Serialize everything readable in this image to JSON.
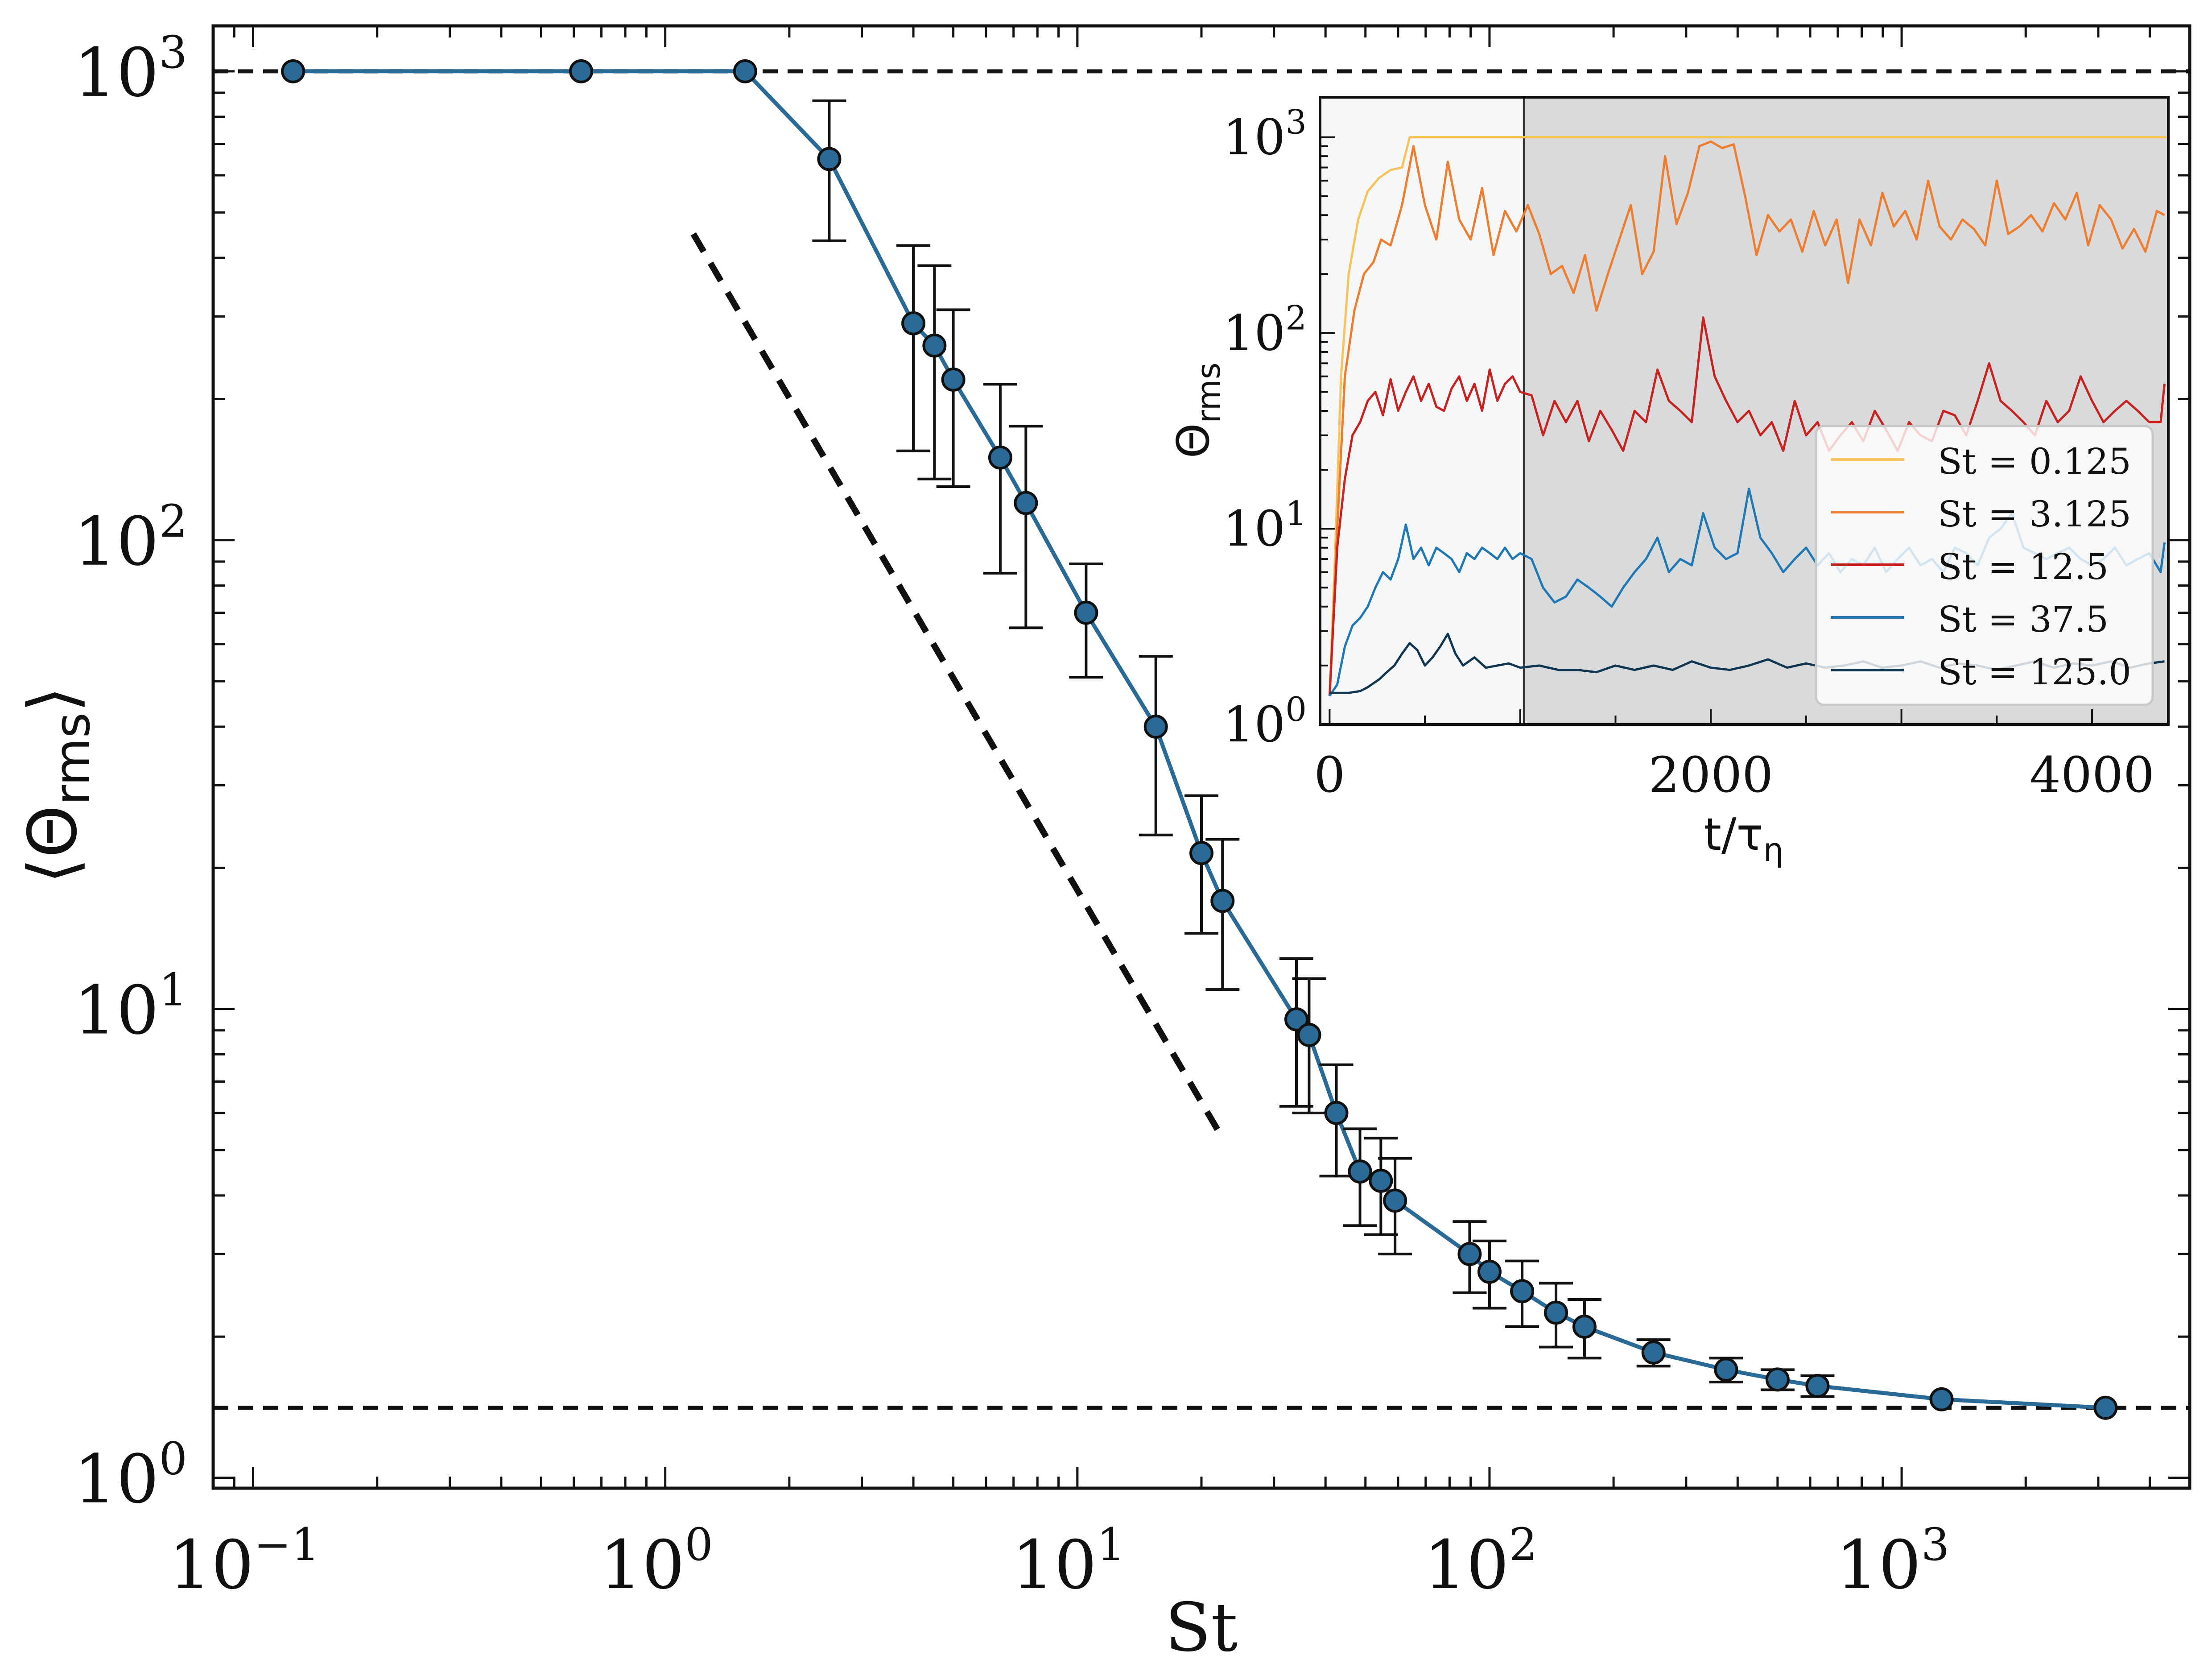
{
  "chart_data": [
    {
      "type": "line",
      "title": "",
      "xlabel": "St",
      "ylabel_main": "Θ",
      "ylabel_sub": "rms",
      "xscale": "log",
      "yscale": "log",
      "xlim": [
        0.08,
        5000
      ],
      "ylim": [
        0.95,
        1250
      ],
      "grid": false,
      "color": "#2a6a96",
      "marker_fill": "#2b6a96",
      "x_ticks": [
        {
          "base": "10",
          "exp": "−1",
          "value": 0.1
        },
        {
          "base": "10",
          "exp": "0",
          "value": 1
        },
        {
          "base": "10",
          "exp": "1",
          "value": 10
        },
        {
          "base": "10",
          "exp": "2",
          "value": 100
        },
        {
          "base": "10",
          "exp": "3",
          "value": 1000
        }
      ],
      "y_ticks": [
        {
          "base": "10",
          "exp": "0",
          "value": 1
        },
        {
          "base": "10",
          "exp": "1",
          "value": 10
        },
        {
          "base": "10",
          "exp": "2",
          "value": 100
        },
        {
          "base": "10",
          "exp": "3",
          "value": 1000
        }
      ],
      "series": [
        {
          "name": "mean Θrms",
          "x": [
            0.125,
            0.625,
            1.5625,
            2.5,
            4.0,
            4.5,
            5.0,
            6.5,
            7.5,
            10.5,
            15.5,
            20.0,
            22.5,
            34.0,
            36.5,
            42.5,
            48.5,
            54.5,
            59.0,
            89.5,
            100.0,
            120.0,
            145.0,
            170.0,
            250.0,
            375.0,
            500.0,
            625.0,
            1250.0,
            3125.0
          ],
          "y": [
            1000,
            1000,
            1000,
            650,
            290,
            260,
            220,
            150,
            120,
            70,
            40,
            21.5,
            17,
            9.5,
            8.8,
            6,
            4.5,
            4.3,
            3.9,
            3.0,
            2.75,
            2.5,
            2.25,
            2.1,
            1.85,
            1.7,
            1.62,
            1.57,
            1.47,
            1.41
          ],
          "err_low": [
            0,
            0,
            0,
            215,
            135,
            125,
            90,
            65,
            55,
            19,
            16.5,
            7,
            6,
            3.3,
            2.8,
            1.6,
            1.05,
            1.0,
            0.9,
            0.52,
            0.45,
            0.4,
            0.35,
            0.3,
            0.12,
            0.1,
            0.08,
            0.08,
            0,
            0
          ],
          "err_high": [
            0,
            0,
            0,
            215,
            135,
            125,
            90,
            65,
            55,
            19,
            16.5,
            7,
            6,
            3.3,
            2.8,
            1.6,
            1.05,
            1.0,
            0.9,
            0.52,
            0.45,
            0.4,
            0.35,
            0.3,
            0.12,
            0.1,
            0.08,
            0.08,
            0,
            0
          ]
        }
      ],
      "reference_lines": [
        {
          "kind": "horizontal",
          "y": 1000,
          "style": "dashed"
        },
        {
          "kind": "horizontal",
          "y": 1.41,
          "style": "dashed"
        },
        {
          "kind": "guide",
          "x": [
            1.17,
            22.5
          ],
          "y": [
            450,
            5.3
          ],
          "style": "dashed"
        }
      ]
    },
    {
      "type": "line",
      "title": "",
      "xlabel": "t/τ",
      "xlabel_sub": "η",
      "ylabel_main": "Θ",
      "ylabel_sub": "rms",
      "xscale": "linear",
      "yscale": "log",
      "xlim": [
        -50,
        4400
      ],
      "ylim": [
        1,
        1600
      ],
      "transient_end": 1020,
      "transient_shade": "#f5f7f9",
      "steady_shade": "#d9dadc",
      "x_ticks": [
        {
          "label": "0",
          "value": 0
        },
        {
          "label": "2000",
          "value": 2000
        },
        {
          "label": "4000",
          "value": 4000
        }
      ],
      "y_ticks": [
        {
          "base": "10",
          "exp": "0",
          "value": 1
        },
        {
          "base": "10",
          "exp": "1",
          "value": 10
        },
        {
          "base": "10",
          "exp": "2",
          "value": 100
        },
        {
          "base": "10",
          "exp": "3",
          "value": 1000
        }
      ],
      "legend_position": "lower-right",
      "series": [
        {
          "name": "St = 0.125",
          "color": "#f7c35a",
          "t": [
            0,
            30,
            60,
            100,
            150,
            200,
            260,
            320,
            380,
            420,
            4400
          ],
          "y": [
            1.4,
            8,
            60,
            200,
            380,
            530,
            620,
            680,
            700,
            1000,
            1000
          ]
        },
        {
          "name": "St = 3.125",
          "color": "#f07c2e",
          "t": [
            0,
            40,
            80,
            130,
            180,
            230,
            270,
            320,
            380,
            440,
            500,
            560,
            620,
            680,
            740,
            800,
            860,
            920,
            980,
            1040,
            1100,
            1160,
            1220,
            1280,
            1340,
            1400,
            1460,
            1520,
            1580,
            1640,
            1700,
            1760,
            1820,
            1880,
            1940,
            2000,
            2060,
            2120,
            2180,
            2240,
            2300,
            2360,
            2420,
            2480,
            2540,
            2600,
            2660,
            2720,
            2780,
            2840,
            2900,
            2960,
            3020,
            3080,
            3140,
            3200,
            3260,
            3320,
            3380,
            3440,
            3500,
            3560,
            3620,
            3680,
            3740,
            3800,
            3860,
            3920,
            3980,
            4040,
            4100,
            4160,
            4220,
            4280,
            4340,
            4380
          ],
          "y": [
            1.4,
            10,
            60,
            130,
            200,
            230,
            300,
            280,
            450,
            900,
            450,
            300,
            750,
            380,
            300,
            550,
            250,
            420,
            330,
            450,
            320,
            200,
            220,
            160,
            250,
            130,
            200,
            300,
            450,
            200,
            260,
            800,
            360,
            520,
            900,
            950,
            880,
            920,
            500,
            250,
            400,
            330,
            380,
            260,
            420,
            280,
            380,
            180,
            380,
            280,
            520,
            350,
            420,
            300,
            600,
            350,
            300,
            380,
            340,
            280,
            600,
            320,
            350,
            400,
            330,
            460,
            380,
            520,
            280,
            450,
            380,
            270,
            340,
            260,
            420,
            400
          ]
        },
        {
          "name": "St = 12.5",
          "color": "#c8211f",
          "t": [
            0,
            40,
            80,
            120,
            160,
            200,
            240,
            280,
            320,
            360,
            400,
            440,
            480,
            520,
            560,
            600,
            640,
            680,
            720,
            760,
            800,
            840,
            880,
            920,
            960,
            1000,
            1060,
            1120,
            1180,
            1240,
            1300,
            1360,
            1420,
            1480,
            1540,
            1600,
            1660,
            1720,
            1780,
            1840,
            1900,
            1960,
            2020,
            2080,
            2140,
            2200,
            2260,
            2320,
            2380,
            2440,
            2500,
            2560,
            2620,
            2680,
            2740,
            2800,
            2860,
            2920,
            2980,
            3040,
            3100,
            3160,
            3220,
            3280,
            3340,
            3400,
            3460,
            3520,
            3580,
            3640,
            3700,
            3760,
            3820,
            3880,
            3940,
            4000,
            4060,
            4120,
            4180,
            4240,
            4300,
            4360,
            4380
          ],
          "y": [
            1.4,
            8,
            18,
            30,
            35,
            45,
            50,
            38,
            58,
            40,
            50,
            60,
            45,
            55,
            42,
            40,
            52,
            60,
            45,
            55,
            40,
            65,
            45,
            55,
            60,
            50,
            48,
            30,
            45,
            35,
            45,
            28,
            40,
            32,
            25,
            40,
            35,
            65,
            45,
            40,
            35,
            120,
            60,
            45,
            35,
            40,
            30,
            35,
            25,
            45,
            30,
            35,
            25,
            30,
            35,
            28,
            40,
            32,
            25,
            35,
            30,
            28,
            40,
            38,
            30,
            45,
            70,
            45,
            40,
            35,
            30,
            45,
            35,
            40,
            60,
            45,
            35,
            40,
            45,
            40,
            35,
            35,
            55
          ]
        },
        {
          "name": "St = 37.5",
          "color": "#1f77b4",
          "t": [
            0,
            40,
            80,
            120,
            160,
            200,
            240,
            280,
            320,
            360,
            400,
            440,
            480,
            520,
            560,
            600,
            640,
            680,
            720,
            760,
            800,
            840,
            880,
            920,
            960,
            1000,
            1060,
            1120,
            1180,
            1240,
            1300,
            1360,
            1420,
            1480,
            1540,
            1600,
            1660,
            1720,
            1780,
            1840,
            1900,
            1960,
            2020,
            2080,
            2140,
            2200,
            2260,
            2320,
            2380,
            2440,
            2500,
            2560,
            2620,
            2680,
            2740,
            2800,
            2860,
            2920,
            2980,
            3040,
            3100,
            3160,
            3220,
            3280,
            3340,
            3400,
            3460,
            3520,
            3580,
            3640,
            3700,
            3760,
            3820,
            3880,
            3940,
            4000,
            4060,
            4120,
            4180,
            4240,
            4300,
            4360,
            4380
          ],
          "y": [
            1.4,
            1.6,
            2.5,
            3.2,
            3.5,
            4.0,
            5.0,
            6.0,
            5.5,
            7.0,
            10.5,
            7.0,
            8.0,
            6.5,
            8.0,
            7.5,
            7.0,
            6.0,
            7.5,
            7.0,
            8.0,
            7.5,
            7.0,
            8.0,
            7.0,
            7.5,
            7.0,
            5.0,
            4.2,
            4.5,
            5.5,
            5.0,
            4.5,
            4.0,
            5.0,
            6.0,
            7.0,
            9.0,
            6.0,
            7.0,
            6.5,
            12.0,
            8.0,
            7.0,
            7.5,
            16.0,
            9.0,
            7.5,
            6.0,
            7.0,
            8.0,
            6.5,
            7.5,
            6.0,
            7.0,
            6.5,
            8.0,
            6.0,
            7.0,
            8.0,
            6.5,
            7.0,
            6.0,
            8.0,
            7.5,
            6.5,
            9.0,
            10.0,
            12.0,
            8.0,
            7.5,
            7.0,
            7.5,
            8.0,
            7.0,
            6.5,
            7.0,
            8.0,
            6.5,
            7.0,
            7.5,
            6.0,
            8.5
          ]
        },
        {
          "name": "St = 125.0",
          "color": "#0f3551",
          "t": [
            0,
            100,
            160,
            200,
            260,
            300,
            340,
            380,
            420,
            460,
            500,
            540,
            580,
            620,
            660,
            700,
            760,
            820,
            880,
            940,
            1000,
            1100,
            1200,
            1300,
            1400,
            1500,
            1600,
            1700,
            1800,
            1900,
            2000,
            2100,
            2200,
            2300,
            2400,
            2500,
            2600,
            2700,
            2800,
            2900,
            3000,
            3100,
            3200,
            3300,
            3400,
            3500,
            3600,
            3700,
            3800,
            3900,
            4000,
            4100,
            4200,
            4300,
            4380
          ],
          "y": [
            1.45,
            1.45,
            1.48,
            1.55,
            1.7,
            1.85,
            2.0,
            2.3,
            2.6,
            2.4,
            2.0,
            2.2,
            2.5,
            2.9,
            2.3,
            2.0,
            2.2,
            1.95,
            2.0,
            2.05,
            1.95,
            2.0,
            1.9,
            1.9,
            1.85,
            2.0,
            1.9,
            2.0,
            1.9,
            2.1,
            1.95,
            1.9,
            2.0,
            2.15,
            1.95,
            2.05,
            1.95,
            2.0,
            2.1,
            1.95,
            2.0,
            2.1,
            1.95,
            2.05,
            2.0,
            1.9,
            2.0,
            2.1,
            1.95,
            2.05,
            2.0,
            2.1,
            1.95,
            2.05,
            2.1
          ]
        }
      ]
    }
  ]
}
